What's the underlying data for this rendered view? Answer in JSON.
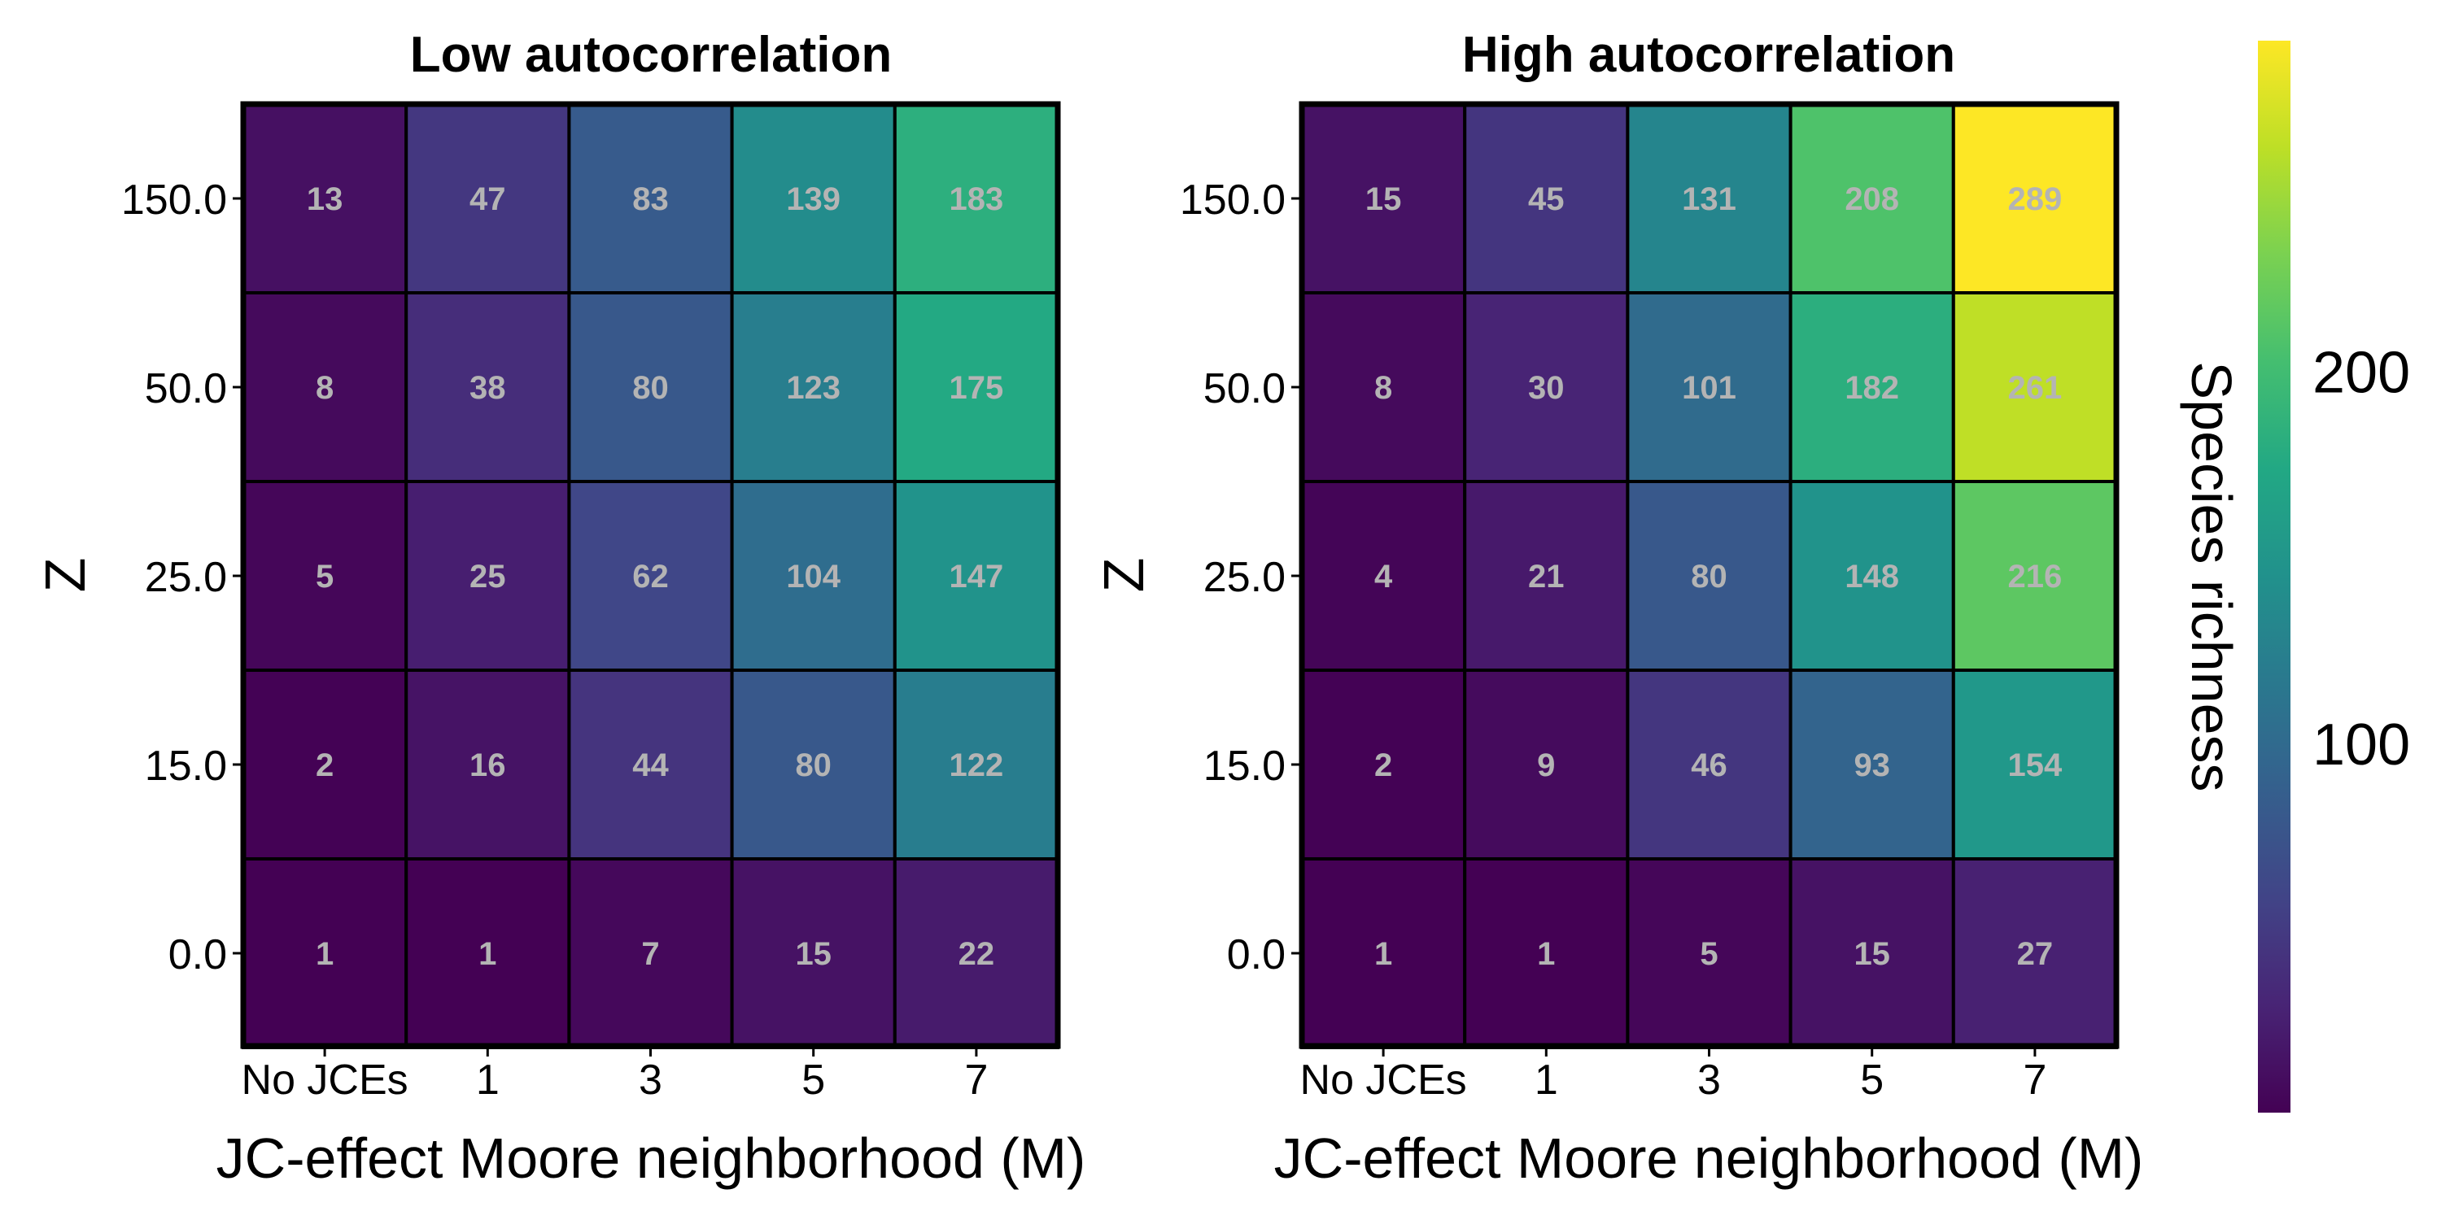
{
  "chart_data": [
    {
      "type": "heatmap",
      "title": "Low autocorrelation",
      "xlabel": "JC-effect Moore neighborhood (M)",
      "ylabel": "Z",
      "x_categories": [
        "No JCEs",
        "1",
        "3",
        "5",
        "7"
      ],
      "y_categories": [
        "150.0",
        "50.0",
        "25.0",
        "15.0",
        "0.0"
      ],
      "values": [
        [
          13,
          47,
          83,
          139,
          183
        ],
        [
          8,
          38,
          80,
          123,
          175
        ],
        [
          5,
          25,
          62,
          104,
          147
        ],
        [
          2,
          16,
          44,
          80,
          122
        ],
        [
          1,
          1,
          7,
          15,
          22
        ]
      ]
    },
    {
      "type": "heatmap",
      "title": "High autocorrelation",
      "xlabel": "JC-effect Moore neighborhood (M)",
      "ylabel": "Z",
      "x_categories": [
        "No JCEs",
        "1",
        "3",
        "5",
        "7"
      ],
      "y_categories": [
        "150.0",
        "50.0",
        "25.0",
        "15.0",
        "0.0"
      ],
      "values": [
        [
          15,
          45,
          131,
          208,
          289
        ],
        [
          8,
          30,
          101,
          182,
          261
        ],
        [
          4,
          21,
          80,
          148,
          216
        ],
        [
          2,
          9,
          46,
          93,
          154
        ],
        [
          1,
          1,
          5,
          15,
          27
        ]
      ]
    }
  ],
  "colorbar": {
    "label": "Species richness",
    "colormap": "viridis",
    "range": [
      1,
      289
    ],
    "ticks": [
      100,
      200
    ]
  },
  "style": {
    "cell_text_color": "#b4b4b4",
    "cell_border_color": "#000000"
  }
}
